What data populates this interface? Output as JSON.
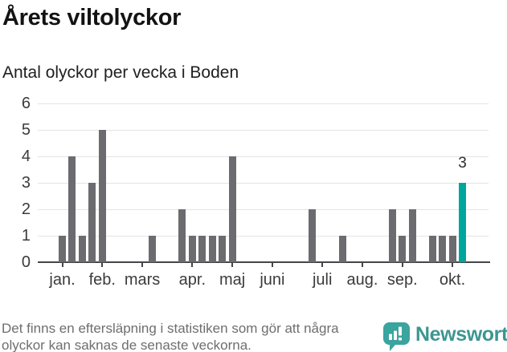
{
  "header": {
    "title": "Årets viltolyckor",
    "subtitle": "Antal olyckor per vecka i Boden"
  },
  "chart_data": {
    "type": "bar",
    "x_unit": "week",
    "title": "Årets viltolyckor",
    "subtitle": "Antal olyckor per vecka i Boden",
    "values": [
      1,
      4,
      1,
      3,
      5,
      0,
      0,
      0,
      0,
      1,
      0,
      0,
      2,
      1,
      1,
      1,
      1,
      4,
      0,
      0,
      0,
      0,
      0,
      0,
      0,
      2,
      0,
      0,
      1,
      0,
      0,
      0,
      0,
      2,
      1,
      2,
      0,
      1,
      1,
      1,
      3
    ],
    "months": [
      {
        "label": "jan.",
        "week": 0
      },
      {
        "label": "feb.",
        "week": 4
      },
      {
        "label": "mars",
        "week": 8
      },
      {
        "label": "apr.",
        "week": 13
      },
      {
        "label": "maj",
        "week": 17
      },
      {
        "label": "juni",
        "week": 21
      },
      {
        "label": "juli",
        "week": 26
      },
      {
        "label": "aug.",
        "week": 30
      },
      {
        "label": "sep.",
        "week": 34
      },
      {
        "label": "okt.",
        "week": 39
      }
    ],
    "yticks": [
      0,
      1,
      2,
      3,
      4,
      5,
      6
    ],
    "ylim": [
      0,
      6
    ],
    "grid": true,
    "legend": null,
    "highlight_last_bar": true,
    "annotations": [
      {
        "text": "3",
        "week": 40,
        "value": 3
      }
    ],
    "colors": {
      "bar": "#6b6b70",
      "highlight": "#00a69d",
      "gridline": "#e4e4e7",
      "axis": "#454549"
    }
  },
  "footer": {
    "note": "Det finns en eftersläpning i statistiken som gör att några olyckor kan saknas de senaste veckorna.",
    "brand": "Newsworthy",
    "brand_colors": {
      "bubble": "#3aa49e",
      "text": "#3c9691"
    }
  }
}
